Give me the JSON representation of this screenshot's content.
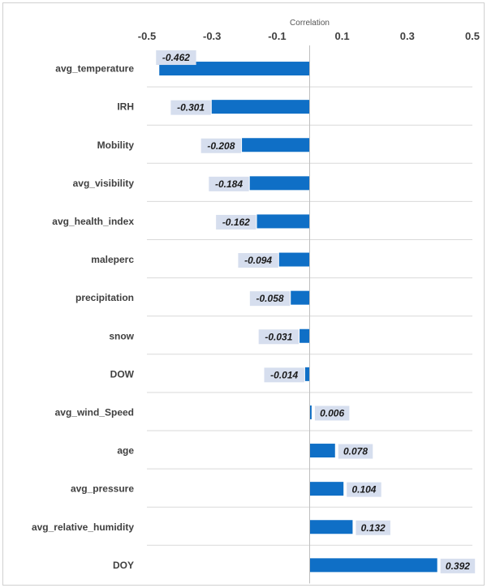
{
  "chart_data": {
    "type": "bar",
    "orientation": "horizontal",
    "title": "",
    "xlabel": "Correlation",
    "ylabel": "",
    "xlim": [
      -0.5,
      0.5
    ],
    "x_ticks": [
      "-0.5",
      "-0.3",
      "-0.1",
      "0.1",
      "0.3",
      "0.5"
    ],
    "x_tick_values": [
      -0.5,
      -0.3,
      -0.1,
      0.1,
      0.3,
      0.5
    ],
    "categories": [
      "avg_temperature",
      "IRH",
      "Mobility",
      "avg_visibility",
      "avg_health_index",
      "maleperc",
      "precipitation",
      "snow",
      "DOW",
      "avg_wind_Speed",
      "age",
      "avg_pressure",
      "avg_relative_humidity",
      "DOY"
    ],
    "values": [
      -0.462,
      -0.301,
      -0.208,
      -0.184,
      -0.162,
      -0.094,
      -0.058,
      -0.031,
      -0.014,
      0.006,
      0.078,
      0.104,
      0.132,
      0.392
    ],
    "value_labels": [
      "-0.462",
      "-0.301",
      "-0.208",
      "-0.184",
      "-0.162",
      "-0.094",
      "-0.058",
      "-0.031",
      "-0.014",
      "0.006",
      "0.078",
      "0.104",
      "0.132",
      "0.392"
    ],
    "axis_position": "top",
    "grid": true,
    "legend": "none",
    "colors": {
      "bar": "#0f6fc6",
      "label_bg": "#d6deee",
      "grid": "#d9d9d9"
    }
  }
}
